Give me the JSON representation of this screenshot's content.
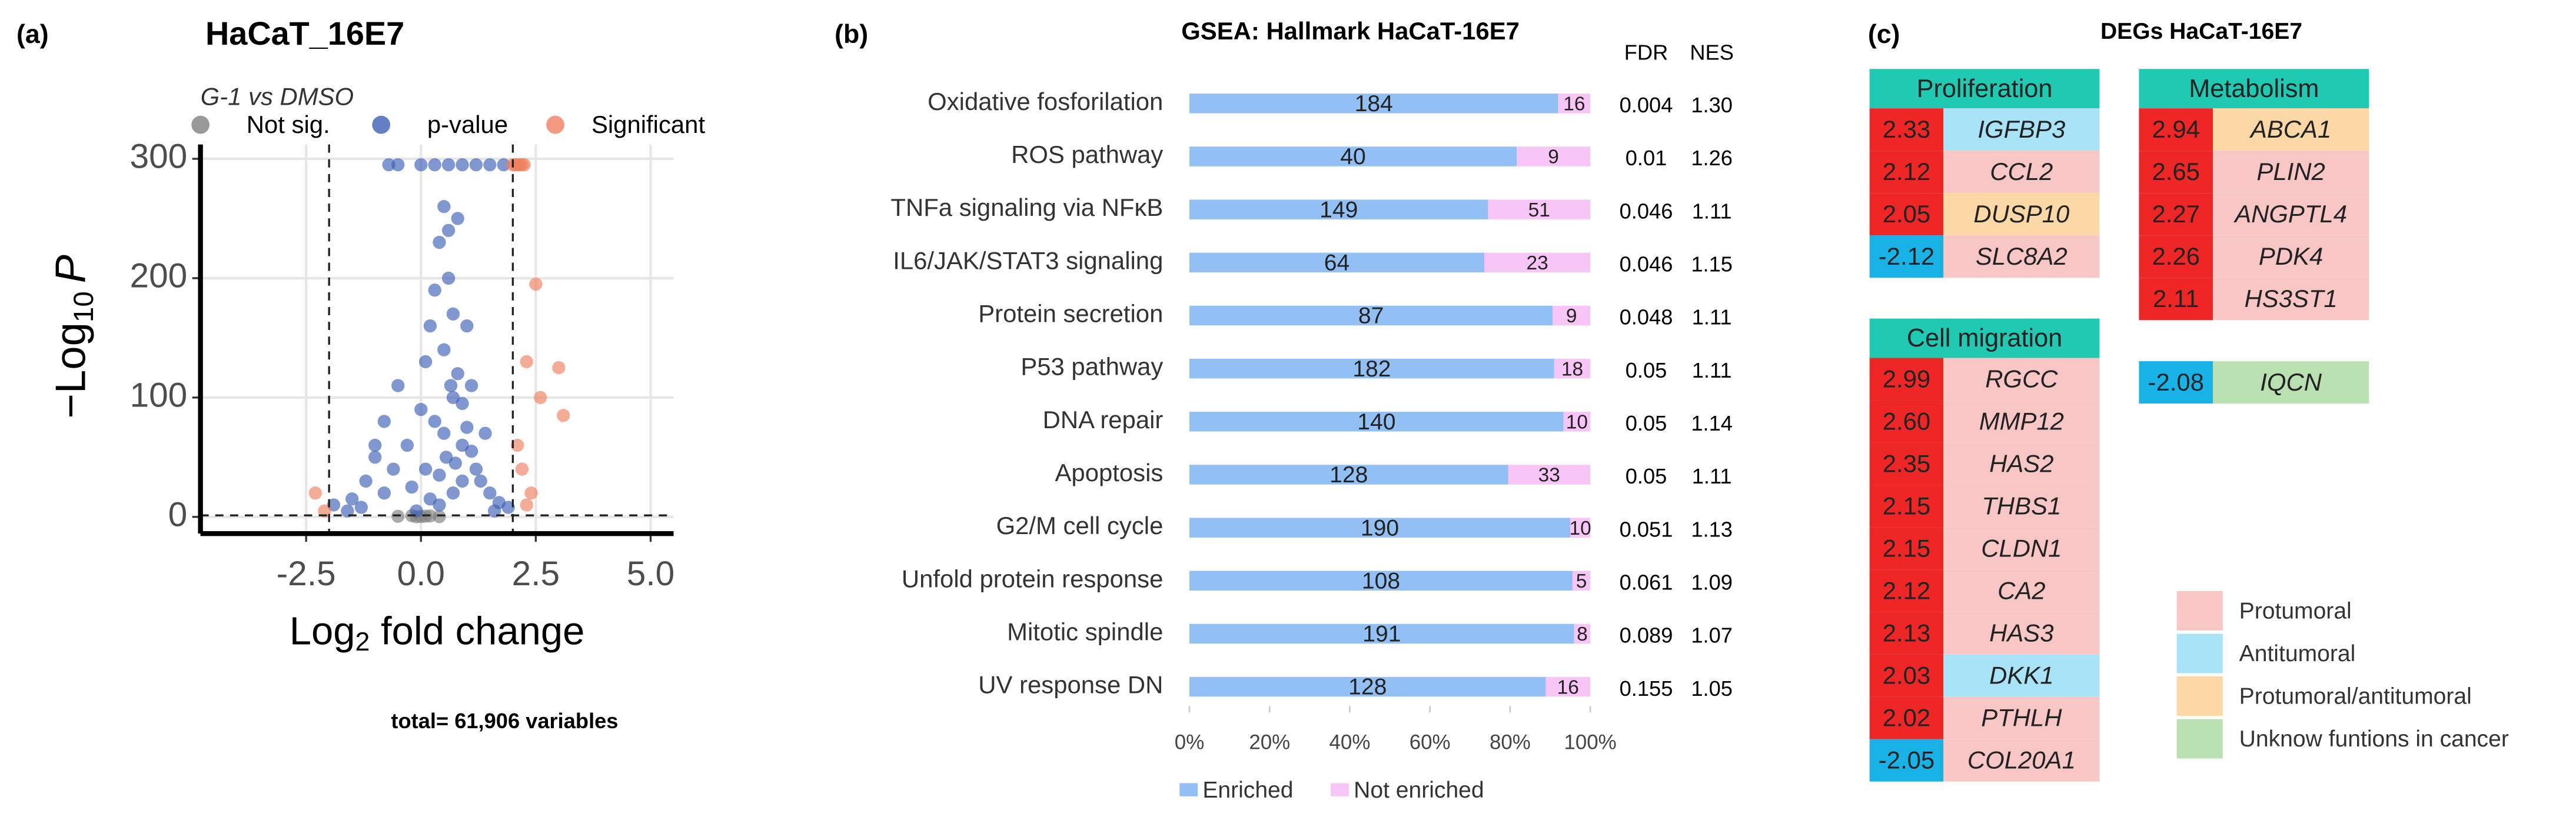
{
  "panel_labels": [
    "(a)",
    "(b)",
    "(c)"
  ],
  "chart_data": [
    {
      "type": "scatter",
      "title": "HaCaT_16E7",
      "subtitle": "G-1 vs DMSO",
      "x_label": {
        "text": "Log",
        "sub": "2",
        "end": " fold change"
      },
      "y_label": {
        "text": "−Log",
        "sub": "10",
        "end": "P"
      },
      "xlim": [
        -4.8,
        5.5
      ],
      "ylim": [
        -14,
        312
      ],
      "xticks": [
        -2.5,
        {
          "value": 0,
          "label": "0.0"
        },
        2.5,
        {
          "value": 5,
          "label": "5.0"
        }
      ],
      "yticks": [
        0,
        100,
        200,
        300
      ],
      "grid": true,
      "legend": "top",
      "cutoffs": {
        "x": [
          -2,
          2
        ],
        "y": [
          1.3
        ]
      },
      "annotation": "total= 61,906 variables",
      "series": [
        {
          "name": "Not sig.",
          "color": "#808080",
          "x": [
            -0.5,
            -0.2,
            0,
            0.2,
            0.4,
            -0.1,
            0.1
          ],
          "values": [
            0.5,
            1,
            0.3,
            0.8,
            0.2,
            0.1,
            0.6
          ]
        },
        {
          "name": "p-value",
          "color": "#3d5fb5",
          "x": [
            -1.9,
            -1.5,
            -1.2,
            -1.0,
            -0.8,
            -0.6,
            -0.5,
            -0.3,
            -0.2,
            0,
            0.1,
            0.2,
            0.3,
            0.4,
            0.5,
            0.5,
            0.6,
            0.7,
            0.8,
            0.9,
            1.0,
            1.1,
            1.2,
            1.3,
            1.5,
            1.7,
            1.9,
            0.3,
            0.5,
            0.7,
            0.9,
            0.6,
            0.8,
            1.0,
            0.4,
            0.7,
            -0.7,
            -0.5,
            0.0,
            0.3,
            0.6,
            0.9,
            1.2,
            1.5,
            1.8,
            -1.0,
            -0.8,
            0.2,
            0.4,
            0.55,
            0.65,
            0.75,
            -1.6,
            -1.3,
            1.6,
            1.4,
            1.1,
            -0.1,
            0.1,
            0.9
          ],
          "values": [
            10,
            15,
            30,
            50,
            80,
            40,
            110,
            60,
            25,
            90,
            130,
            160,
            190,
            230,
            260,
            140,
            200,
            170,
            120,
            95,
            75,
            55,
            40,
            30,
            20,
            12,
            8,
            80,
            70,
            100,
            60,
            240,
            250,
            160,
            35,
            20,
            295,
            295,
            295,
            295,
            295,
            295,
            295,
            295,
            295,
            60,
            20,
            15,
            10,
            50,
            110,
            45,
            5,
            8,
            5,
            70,
            110,
            5,
            40,
            30
          ]
        },
        {
          "name": "Significant",
          "color": "#f0805f",
          "x": [
            2.0,
            2.05,
            2.1,
            2.15,
            2.2,
            2.25,
            2.5,
            2.3,
            3.0,
            2.6,
            3.1,
            2.2,
            2.4,
            -2.3,
            -2.1,
            2.1,
            2.3
          ],
          "values": [
            295,
            295,
            295,
            295,
            295,
            295,
            195,
            130,
            125,
            100,
            85,
            40,
            20,
            20,
            5,
            60,
            10
          ]
        }
      ]
    },
    {
      "type": "hbar_stacked",
      "stack": "percent",
      "title": "GSEA: Hallmark HaCaT-16E7",
      "categories": [
        "Oxidative fosforilation",
        "ROS pathway",
        "TNFa signaling via  NFκB",
        "IL6/JAK/STAT3 signaling",
        "Protein secretion",
        "P53 pathway",
        "DNA repair",
        "Apoptosis",
        "G2/M cell cycle",
        "Unfold protein response",
        "Mitotic spindle",
        "UV response DN"
      ],
      "series": [
        {
          "name": "Enriched",
          "color": "#92c0f4",
          "values": [
            184,
            40,
            149,
            64,
            87,
            182,
            140,
            128,
            190,
            108,
            191,
            128
          ]
        },
        {
          "name": "Not enriched",
          "color": "#f8c6f6",
          "values": [
            16,
            9,
            51,
            23,
            9,
            18,
            10,
            33,
            10,
            5,
            8,
            16
          ]
        }
      ],
      "xlim": [
        0,
        100
      ],
      "xticks": [
        {
          "value": 0,
          "label": "0%"
        },
        {
          "value": 20,
          "label": "20%"
        },
        {
          "value": 40,
          "label": "40%"
        },
        {
          "value": 60,
          "label": "60%"
        },
        {
          "value": 80,
          "label": "80%"
        },
        {
          "value": 100,
          "label": "100%"
        }
      ],
      "legend": "bottom",
      "columns": [
        {
          "name": "FDR",
          "values": [
            "0.004",
            "0.01",
            "0.046",
            "0.046",
            "0.048",
            "0.05",
            "0.05",
            "0.05",
            "0.051",
            "0.061",
            "0.089",
            "0.155"
          ]
        },
        {
          "name": "NES",
          "values": [
            "1.30",
            "1.26",
            "1.11",
            "1.15",
            "1.11",
            "1.11",
            "1.14",
            "1.11",
            "1.13",
            "1.09",
            "1.07",
            "1.05"
          ]
        }
      ]
    }
  ],
  "deg_panel": {
    "title": "DEGs HaCaT-16E7",
    "header_color": "#1fc9b2",
    "up_color": "#ef2626",
    "down_color": "#19b2e6",
    "groups": [
      {
        "name": "Proliferation",
        "rows": [
          {
            "value": "2.33",
            "gene": "IGFBP3",
            "function": "Antitumoral"
          },
          {
            "value": "2.12",
            "gene": "CCL2",
            "function": "Protumoral"
          },
          {
            "value": "2.05",
            "gene": "DUSP10",
            "function": "Protumoral/antitumoral"
          },
          {
            "value": "-2.12",
            "gene": "SLC8A2",
            "function": "Protumoral"
          }
        ]
      },
      {
        "name": "Metabolism",
        "rows": [
          {
            "value": "2.94",
            "gene": "ABCA1",
            "function": "Protumoral/antitumoral"
          },
          {
            "value": "2.65",
            "gene": "PLIN2",
            "function": "Protumoral"
          },
          {
            "value": "2.27",
            "gene": "ANGPTL4",
            "function": "Protumoral"
          },
          {
            "value": "2.26",
            "gene": "PDK4",
            "function": "Protumoral"
          },
          {
            "value": "2.11",
            "gene": "HS3ST1",
            "function": "Protumoral"
          }
        ]
      },
      {
        "name": "Cell migration",
        "rows": [
          {
            "value": "2.99",
            "gene": "RGCC",
            "function": "Protumoral"
          },
          {
            "value": "2.60",
            "gene": "MMP12",
            "function": "Protumoral"
          },
          {
            "value": "2.35",
            "gene": "HAS2",
            "function": "Protumoral"
          },
          {
            "value": "2.15",
            "gene": "THBS1",
            "function": "Protumoral"
          },
          {
            "value": "2.15",
            "gene": "CLDN1",
            "function": "Protumoral"
          },
          {
            "value": "2.12",
            "gene": "CA2",
            "function": "Protumoral"
          },
          {
            "value": "2.13",
            "gene": "HAS3",
            "function": "Protumoral"
          },
          {
            "value": "2.03",
            "gene": "DKK1",
            "function": "Antitumoral"
          },
          {
            "value": "2.02",
            "gene": "PTHLH",
            "function": "Protumoral"
          },
          {
            "value": "-2.05",
            "gene": "COL20A1",
            "function": "Protumoral"
          }
        ]
      },
      {
        "name": null,
        "rows": [
          {
            "value": "-2.08",
            "gene": "IQCN",
            "function": "Unknow funtions in cancer"
          }
        ]
      }
    ],
    "legend": [
      {
        "label": "Protumoral",
        "color": "#f9c6c6"
      },
      {
        "label": "Antitumoral",
        "color": "#a9e3f8"
      },
      {
        "label": "Protumoral/antitumoral",
        "color": "#fbd8a6"
      },
      {
        "label": "Unknow funtions in cancer",
        "color": "#b9e0b1"
      }
    ]
  }
}
